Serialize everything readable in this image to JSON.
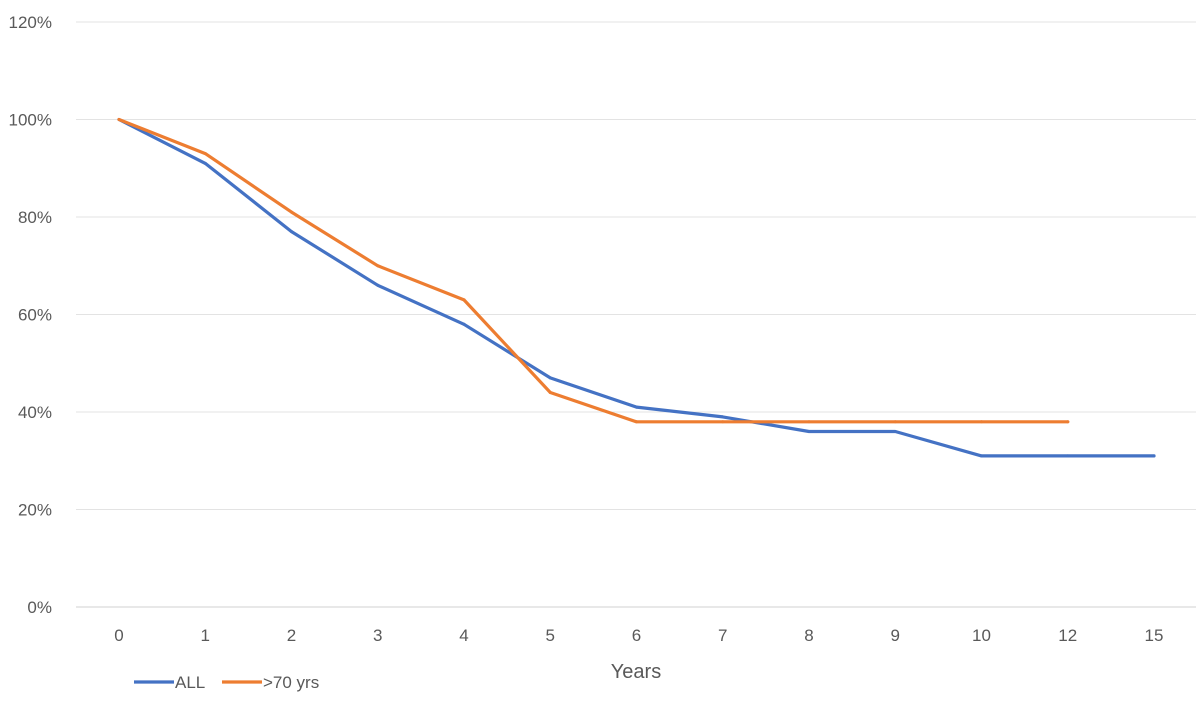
{
  "chart_data": {
    "type": "line",
    "title": "",
    "xlabel": "Years",
    "ylabel": "",
    "categories": [
      "0",
      "1",
      "2",
      "3",
      "4",
      "5",
      "6",
      "7",
      "8",
      "9",
      "10",
      "12",
      "15"
    ],
    "series": [
      {
        "name": "ALL",
        "color": "#4472c4",
        "values": [
          100,
          91,
          77,
          66,
          58,
          47,
          41,
          39,
          36,
          36,
          31,
          31,
          31
        ]
      },
      {
        "name": ">70 yrs",
        "color": "#ed7d31",
        "values": [
          100,
          93,
          81,
          70,
          63,
          44,
          38,
          38,
          38,
          38,
          38,
          38,
          null
        ]
      }
    ],
    "yticks": [
      "0%",
      "20%",
      "40%",
      "60%",
      "80%",
      "100%",
      "120%"
    ],
    "ylim": [
      0,
      120
    ],
    "grid": true,
    "legend_position": "bottom-left"
  }
}
